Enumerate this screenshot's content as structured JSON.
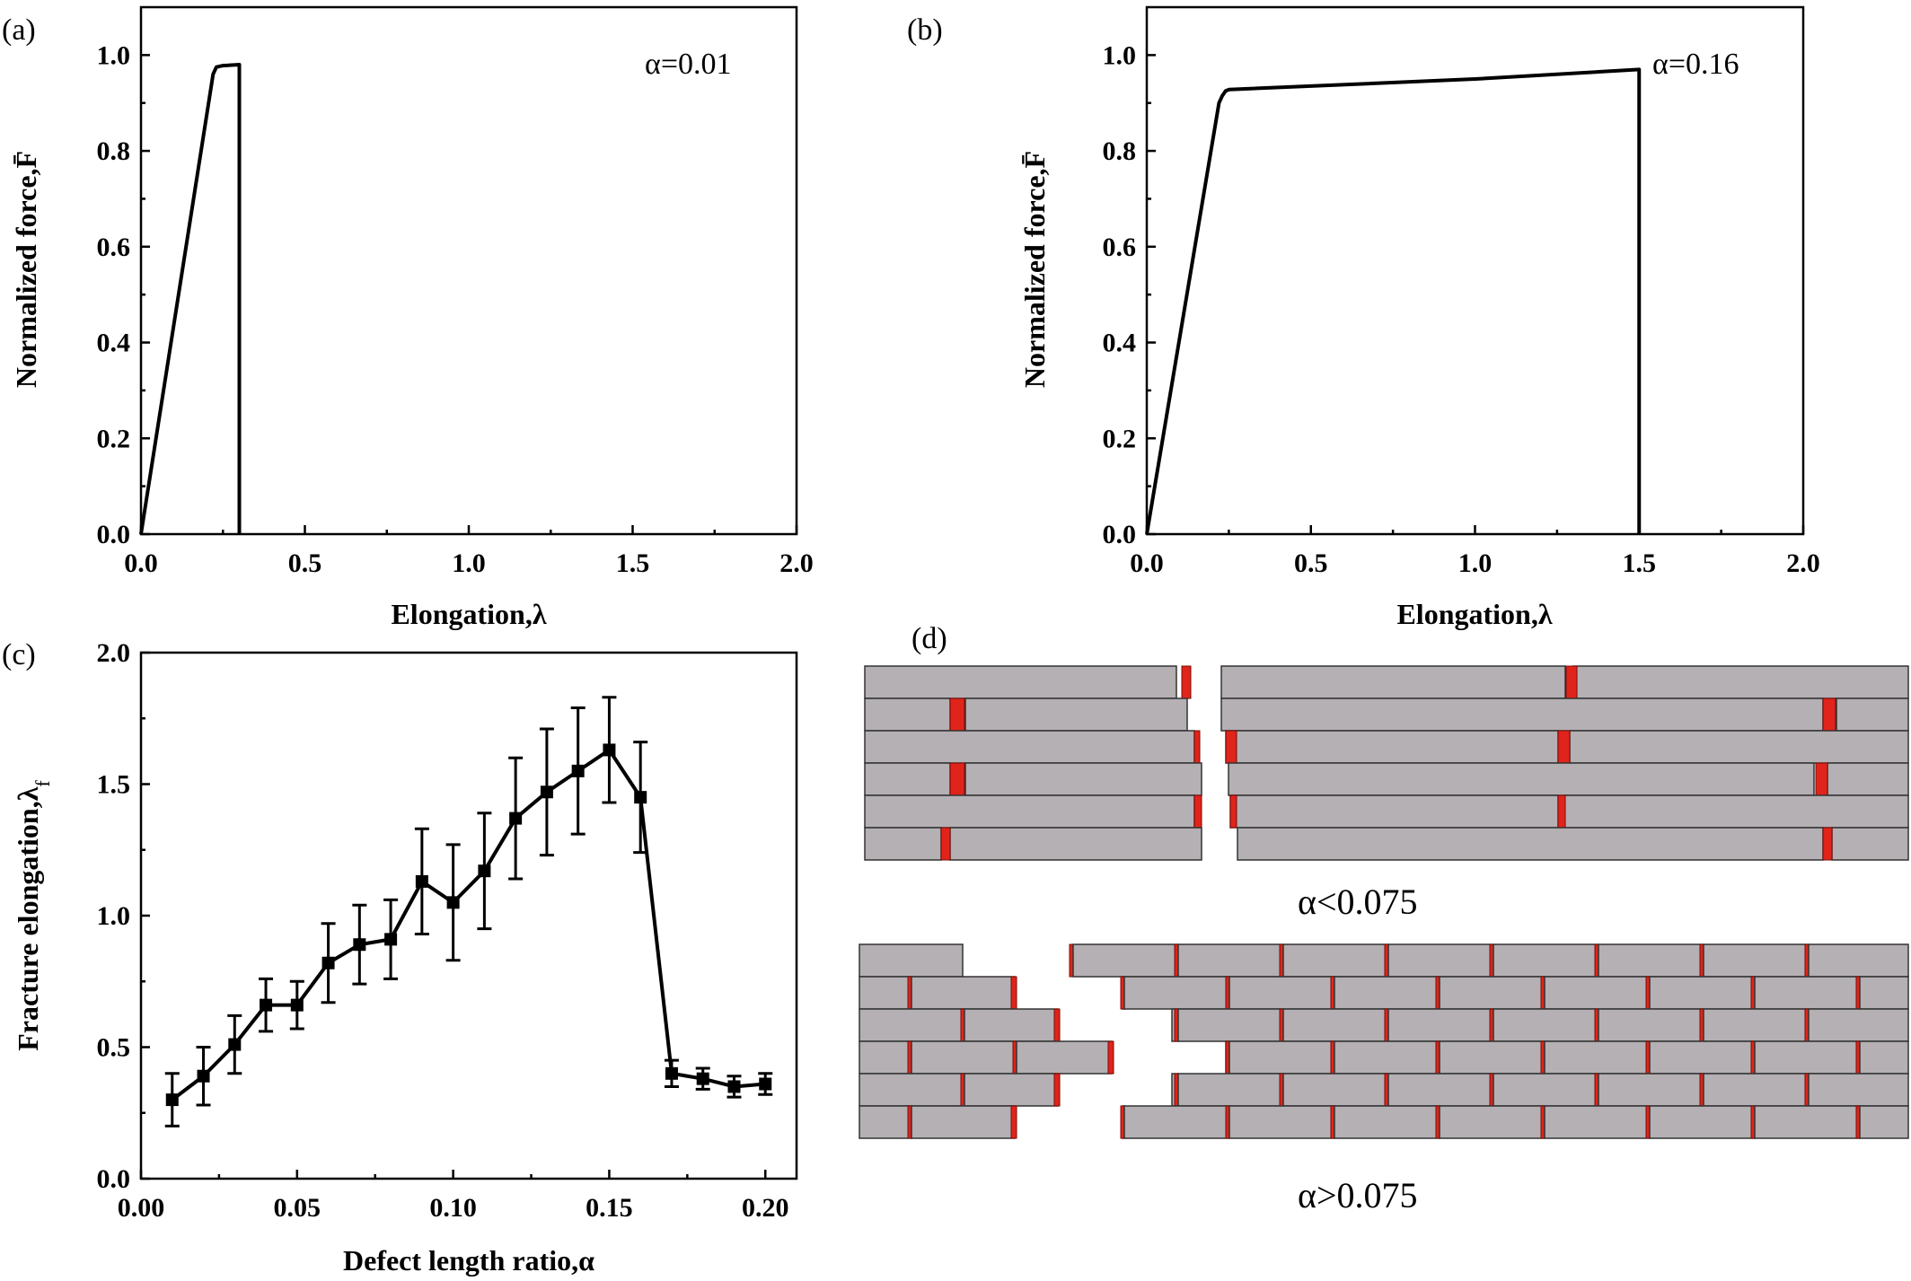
{
  "panels": {
    "a": {
      "letter": "(a)",
      "annotation": "α=0.01"
    },
    "b": {
      "letter": "(b)",
      "annotation": "α=0.16"
    },
    "c": {
      "letter": "(c)"
    },
    "d": {
      "letter": "(d)",
      "caption_top": "α<0.075",
      "caption_bottom": "α>0.075"
    }
  },
  "colors": {
    "brick": "#b4b0b4",
    "defect": "#e0241b",
    "line": "#000000"
  },
  "chart_data": [
    {
      "id": "a",
      "type": "line",
      "xlabel": "Elongation,λ",
      "ylabel": "Normalized force,F̄",
      "xlim": [
        0,
        2.0
      ],
      "ylim": [
        0,
        1.1
      ],
      "xticks": [
        "0.0",
        "0.5",
        "1.0",
        "1.5",
        "2.0"
      ],
      "yticks": [
        "0.0",
        "0.2",
        "0.4",
        "0.6",
        "0.8",
        "1.0"
      ],
      "series": [
        {
          "x": [
            0.0,
            0.22,
            0.23,
            0.25,
            0.3,
            0.3
          ],
          "y": [
            0.0,
            0.96,
            0.975,
            0.978,
            0.98,
            0.0
          ]
        }
      ]
    },
    {
      "id": "b",
      "type": "line",
      "xlabel": "Elongation,λ",
      "ylabel": "Normalized force,F̄",
      "xlim": [
        0,
        2.0
      ],
      "ylim": [
        0,
        1.1
      ],
      "xticks": [
        "0.0",
        "0.5",
        "1.0",
        "1.5",
        "2.0"
      ],
      "yticks": [
        "0.0",
        "0.2",
        "0.4",
        "0.6",
        "0.8",
        "1.0"
      ],
      "series": [
        {
          "x": [
            0.0,
            0.22,
            0.23,
            0.24,
            0.25,
            1.0,
            1.5,
            1.5
          ],
          "y": [
            0.0,
            0.9,
            0.915,
            0.925,
            0.928,
            0.95,
            0.97,
            0.0
          ]
        }
      ]
    },
    {
      "id": "c",
      "type": "line",
      "xlabel": "Defect length ratio,α",
      "ylabel": "Fracture elongation,λ",
      "ylabel_sub": "f",
      "xlim": [
        0,
        0.21
      ],
      "ylim": [
        0,
        2.0
      ],
      "xticks": [
        "0.00",
        "0.05",
        "0.10",
        "0.15",
        "0.20"
      ],
      "yticks": [
        "0.0",
        "0.5",
        "1.0",
        "1.5",
        "2.0"
      ],
      "series": [
        {
          "x": [
            0.01,
            0.02,
            0.03,
            0.04,
            0.05,
            0.06,
            0.07,
            0.08,
            0.09,
            0.1,
            0.11,
            0.12,
            0.13,
            0.14,
            0.15,
            0.16,
            0.17,
            0.18,
            0.19,
            0.2
          ],
          "y": [
            0.3,
            0.39,
            0.51,
            0.66,
            0.66,
            0.82,
            0.89,
            0.91,
            1.13,
            1.05,
            1.17,
            1.37,
            1.47,
            1.55,
            1.63,
            1.45,
            0.4,
            0.38,
            0.35,
            0.36
          ],
          "err": [
            0.1,
            0.11,
            0.11,
            0.1,
            0.09,
            0.15,
            0.15,
            0.15,
            0.2,
            0.22,
            0.22,
            0.23,
            0.24,
            0.24,
            0.2,
            0.21,
            0.05,
            0.04,
            0.04,
            0.04
          ]
        }
      ]
    }
  ]
}
